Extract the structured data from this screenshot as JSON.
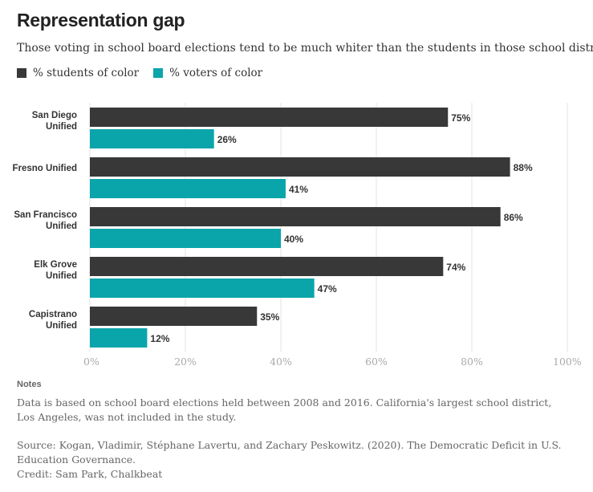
{
  "header": {
    "title": "Representation gap",
    "subtitle": "Those voting in school board elections tend to be much whiter than the students in those school districts."
  },
  "legend": {
    "students_label": "% students of color",
    "voters_label": "% voters of color"
  },
  "colors": {
    "students": "#383838",
    "voters": "#0aa5aa",
    "grid": "#e3e3e3",
    "tick": "#aaaaaa"
  },
  "chart_data": {
    "type": "bar",
    "orientation": "horizontal",
    "title": "Representation gap",
    "categories": [
      [
        "San Diego",
        "Unified"
      ],
      [
        "Fresno Unified"
      ],
      [
        "San Francisco",
        "Unified"
      ],
      [
        "Elk Grove",
        "Unified"
      ],
      [
        "Capistrano",
        "Unified"
      ]
    ],
    "series": [
      {
        "name": "% students of color",
        "values": [
          75,
          88,
          86,
          74,
          35
        ]
      },
      {
        "name": "% voters of color",
        "values": [
          26,
          41,
          40,
          47,
          12
        ]
      }
    ],
    "xlim": [
      0,
      100
    ],
    "xticks": [
      0,
      20,
      40,
      60,
      80,
      100
    ],
    "value_suffix": "%",
    "grid": true,
    "legend_position": "top-left"
  },
  "notes": {
    "heading": "Notes",
    "text": "Data is based on school board elections held between 2008 and 2016. California's largest school district, Los Angeles, was not included in the study.",
    "source": "Source: Kogan, Vladimir, Stéphane Lavertu, and Zachary Peskowitz. (2020). The Democratic Deficit in U.S. Education Governance.",
    "credit": "Credit: Sam Park, Chalkbeat"
  }
}
